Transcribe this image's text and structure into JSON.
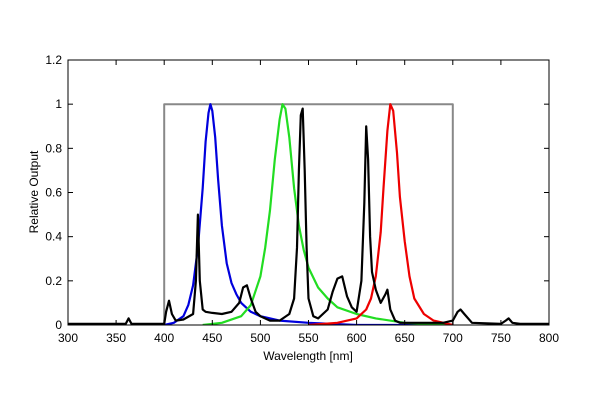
{
  "chart_data": {
    "type": "line",
    "title": "",
    "xlabel": "Wavelength [nm]",
    "ylabel": "Relative Output",
    "xlim": [
      300,
      800
    ],
    "ylim": [
      0,
      1.2
    ],
    "x_ticks": [
      "300",
      "350",
      "400",
      "450",
      "500",
      "550",
      "600",
      "650",
      "700",
      "750",
      "800"
    ],
    "y_ticks": [
      "0",
      "0.2",
      "0.4",
      "0.6",
      "0.8",
      "1",
      "1.2"
    ],
    "grid": false,
    "legend": "none",
    "series": [
      {
        "color": "#888888",
        "x": [
          400,
          400,
          700,
          700
        ],
        "y": [
          0,
          1,
          1,
          0
        ]
      },
      {
        "color": "#0000dd",
        "x": [
          400,
          410,
          420,
          425,
          430,
          435,
          440,
          443,
          446,
          448,
          450,
          453,
          456,
          460,
          465,
          470,
          475,
          480,
          490,
          500,
          520,
          550,
          600,
          700
        ],
        "y": [
          0,
          0.01,
          0.04,
          0.09,
          0.18,
          0.35,
          0.62,
          0.83,
          0.96,
          1.0,
          0.97,
          0.85,
          0.66,
          0.45,
          0.28,
          0.19,
          0.14,
          0.1,
          0.06,
          0.04,
          0.02,
          0.01,
          0,
          0
        ]
      },
      {
        "color": "#22dd22",
        "x": [
          440,
          460,
          480,
          490,
          500,
          505,
          510,
          515,
          520,
          523,
          526,
          530,
          535,
          540,
          545,
          550,
          560,
          570,
          580,
          600,
          620,
          650,
          700
        ],
        "y": [
          0,
          0.01,
          0.04,
          0.09,
          0.22,
          0.35,
          0.52,
          0.75,
          0.93,
          1.0,
          0.98,
          0.85,
          0.62,
          0.45,
          0.34,
          0.26,
          0.17,
          0.12,
          0.08,
          0.05,
          0.03,
          0.01,
          0
        ]
      },
      {
        "color": "#ee0000",
        "x": [
          550,
          580,
          600,
          610,
          615,
          620,
          625,
          628,
          632,
          635,
          638,
          642,
          645,
          650,
          655,
          660,
          670,
          680,
          700
        ],
        "y": [
          0,
          0.01,
          0.03,
          0.07,
          0.12,
          0.22,
          0.42,
          0.62,
          0.88,
          1.0,
          0.97,
          0.78,
          0.58,
          0.38,
          0.22,
          0.12,
          0.05,
          0.02,
          0
        ]
      },
      {
        "color": "#000000",
        "x": [
          300,
          360,
          363,
          366,
          370,
          400,
          402,
          405,
          408,
          412,
          420,
          430,
          433,
          435,
          437,
          440,
          443,
          450,
          460,
          470,
          478,
          482,
          486,
          490,
          495,
          500,
          510,
          520,
          530,
          535,
          538,
          540,
          542,
          544,
          546,
          548,
          550,
          555,
          560,
          570,
          575,
          580,
          585,
          590,
          595,
          600,
          605,
          608,
          610,
          612,
          614,
          616,
          618,
          620,
          625,
          630,
          632,
          635,
          640,
          645,
          650,
          660,
          690,
          700,
          705,
          708,
          712,
          720,
          750,
          755,
          758,
          762,
          770,
          800
        ],
        "y": [
          0.005,
          0.005,
          0.03,
          0.005,
          0.005,
          0.005,
          0.06,
          0.11,
          0.05,
          0.02,
          0.025,
          0.05,
          0.2,
          0.5,
          0.2,
          0.07,
          0.06,
          0.055,
          0.05,
          0.06,
          0.1,
          0.17,
          0.18,
          0.12,
          0.06,
          0.04,
          0.02,
          0.02,
          0.05,
          0.12,
          0.35,
          0.7,
          0.95,
          0.98,
          0.7,
          0.35,
          0.12,
          0.04,
          0.03,
          0.07,
          0.15,
          0.21,
          0.22,
          0.13,
          0.08,
          0.06,
          0.2,
          0.55,
          0.9,
          0.75,
          0.4,
          0.24,
          0.2,
          0.16,
          0.1,
          0.14,
          0.16,
          0.07,
          0.02,
          0.01,
          0.01,
          0.01,
          0.01,
          0.02,
          0.06,
          0.07,
          0.05,
          0.01,
          0.005,
          0.02,
          0.03,
          0.01,
          0.005,
          0.005
        ]
      }
    ]
  }
}
